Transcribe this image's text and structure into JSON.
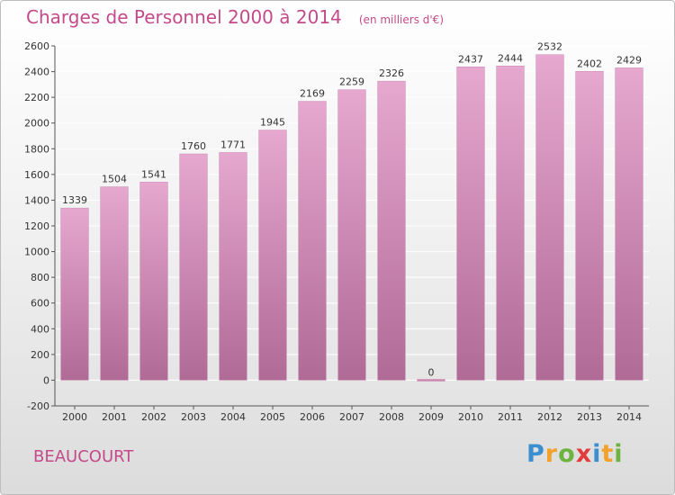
{
  "header": {
    "title": "Charges de Personnel 2000 à 2014",
    "unit": "(en milliers d'€)"
  },
  "footer": {
    "commune": "BEAUCOURT",
    "logo_letters": [
      {
        "ch": "P",
        "color": "#3b8fd0"
      },
      {
        "ch": "r",
        "color": "#f2a12a"
      },
      {
        "ch": "o",
        "color": "#6db33f"
      },
      {
        "ch": "x",
        "color": "#e23b3b"
      },
      {
        "ch": "i",
        "color": "#3b8fd0"
      },
      {
        "ch": "t",
        "color": "#f2a12a"
      },
      {
        "ch": "i",
        "color": "#6db33f"
      }
    ]
  },
  "colors": {
    "accent": "#c44a8a",
    "bar_top": "#e6a8cf",
    "bar_bottom": "#b06a96",
    "grid": "#ffffff",
    "axis": "#555555"
  },
  "chart_data": {
    "type": "bar",
    "categories": [
      "2000",
      "2001",
      "2002",
      "2003",
      "2004",
      "2005",
      "2006",
      "2007",
      "2008",
      "2009",
      "2010",
      "2011",
      "2012",
      "2013",
      "2014"
    ],
    "values": [
      1339,
      1504,
      1541,
      1760,
      1771,
      1945,
      2169,
      2259,
      2326,
      0,
      2437,
      2444,
      2532,
      2402,
      2429
    ],
    "ylim": [
      -200,
      2600
    ],
    "yticks": [
      -200,
      0,
      200,
      400,
      600,
      800,
      1000,
      1200,
      1400,
      1600,
      1800,
      2000,
      2200,
      2400,
      2600
    ],
    "grid": true,
    "data_labels": true
  }
}
